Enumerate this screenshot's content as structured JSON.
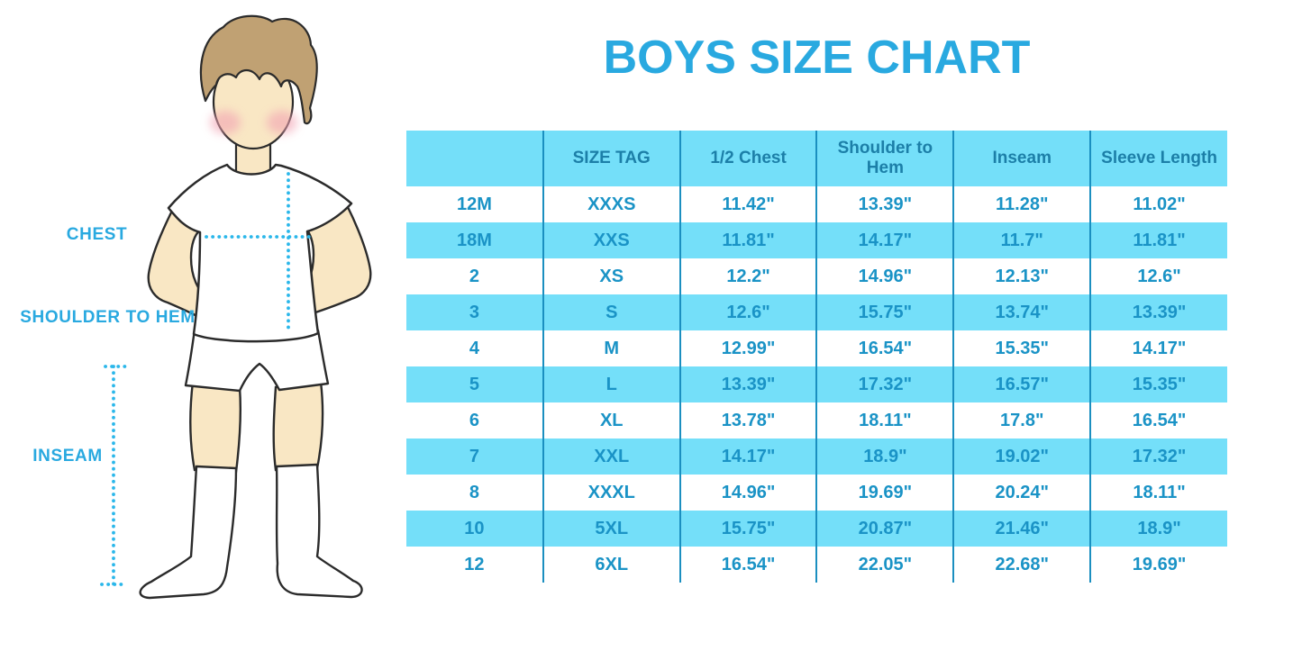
{
  "title": "BOYS SIZE CHART",
  "figure": {
    "labels": {
      "chest": "CHEST",
      "shoulder_to_hem": "SHOULDER TO HEM",
      "inseam": "INSEAM"
    }
  },
  "colors": {
    "accent_blue": "#29A9E0",
    "table_stripe_cyan": "#74DFF9",
    "table_divider_blue": "#1B8FC0",
    "table_cell_text": "#1A93C6",
    "table_header_text": "#1C7FA8",
    "dotted_line_cyan": "#2BB7EA",
    "skin": "#F9E7C4",
    "hair": "#C0A173"
  },
  "chart_data": {
    "type": "table",
    "title": "BOYS SIZE CHART",
    "columns": [
      "",
      "SIZE TAG",
      "1/2 Chest",
      "Shoulder to Hem",
      "Inseam",
      "Sleeve Length"
    ],
    "rows": [
      [
        "12M",
        "XXXS",
        "11.42\"",
        "13.39\"",
        "11.28\"",
        "11.02\""
      ],
      [
        "18M",
        "XXS",
        "11.81\"",
        "14.17\"",
        "11.7\"",
        "11.81\""
      ],
      [
        "2",
        "XS",
        "12.2\"",
        "14.96\"",
        "12.13\"",
        "12.6\""
      ],
      [
        "3",
        "S",
        "12.6\"",
        "15.75\"",
        "13.74\"",
        "13.39\""
      ],
      [
        "4",
        "M",
        "12.99\"",
        "16.54\"",
        "15.35\"",
        "14.17\""
      ],
      [
        "5",
        "L",
        "13.39\"",
        "17.32\"",
        "16.57\"",
        "15.35\""
      ],
      [
        "6",
        "XL",
        "13.78\"",
        "18.11\"",
        "17.8\"",
        "16.54\""
      ],
      [
        "7",
        "XXL",
        "14.17\"",
        "18.9\"",
        "19.02\"",
        "17.32\""
      ],
      [
        "8",
        "XXXL",
        "14.96\"",
        "19.69\"",
        "20.24\"",
        "18.11\""
      ],
      [
        "10",
        "5XL",
        "15.75\"",
        "20.87\"",
        "21.46\"",
        "18.9\""
      ],
      [
        "12",
        "6XL",
        "16.54\"",
        "22.05\"",
        "22.68\"",
        "19.69\""
      ]
    ]
  }
}
